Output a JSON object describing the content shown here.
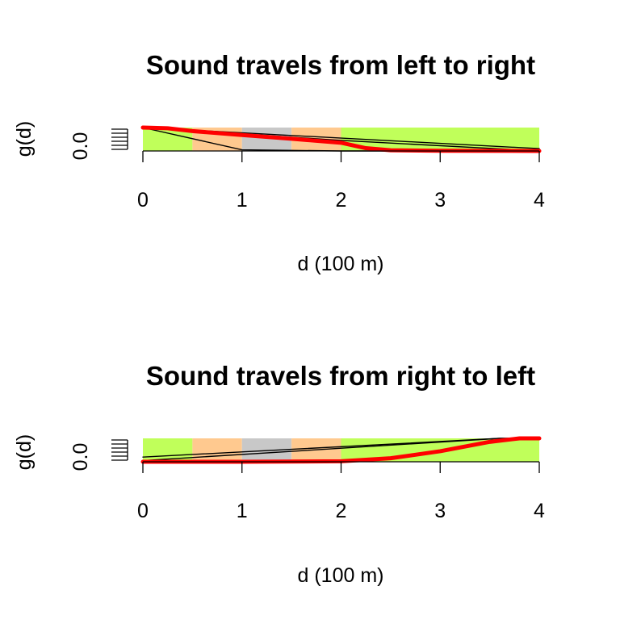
{
  "chart_data": [
    {
      "type": "line",
      "title": "Sound travels from left to right",
      "xlabel": "d (100 m)",
      "ylabel": "g(d)",
      "xlim": [
        0,
        4
      ],
      "ylim": [
        0,
        1
      ],
      "x_ticks": [
        "0",
        "1",
        "2",
        "3",
        "4"
      ],
      "y_ticks": [
        "0.0"
      ],
      "background_bands": [
        {
          "from": 0.0,
          "to": 0.5,
          "color": "#c0ff5a"
        },
        {
          "from": 0.5,
          "to": 1.0,
          "color": "#ffc98f"
        },
        {
          "from": 1.0,
          "to": 1.5,
          "color": "#c8c8c8"
        },
        {
          "from": 1.5,
          "to": 2.0,
          "color": "#ffc98f"
        },
        {
          "from": 2.0,
          "to": 4.0,
          "color": "#c0ff5a"
        }
      ],
      "series": [
        {
          "color": "#000000",
          "width": 1.4,
          "x": [
            0,
            4
          ],
          "y": [
            1.0,
            0.1
          ]
        },
        {
          "color": "#000000",
          "width": 1.4,
          "x": [
            0,
            2,
            4
          ],
          "y": [
            1.0,
            0.45,
            0.0
          ]
        },
        {
          "color": "#000000",
          "width": 1.4,
          "x": [
            0,
            1,
            2,
            4
          ],
          "y": [
            1.0,
            0.05,
            0.0,
            0.0
          ]
        },
        {
          "color": "#ff0000",
          "width": 5,
          "x": [
            0,
            0.25,
            0.5,
            1.0,
            1.5,
            2.0,
            2.25,
            2.5,
            3.0,
            4.0
          ],
          "y": [
            1.0,
            0.97,
            0.85,
            0.68,
            0.52,
            0.35,
            0.12,
            0.03,
            0.01,
            0.0
          ]
        }
      ]
    },
    {
      "type": "line",
      "title": "Sound travels from right to left",
      "xlabel": "d (100 m)",
      "ylabel": "g(d)",
      "xlim": [
        0,
        4
      ],
      "ylim": [
        0,
        1
      ],
      "x_ticks": [
        "0",
        "1",
        "2",
        "3",
        "4"
      ],
      "y_ticks": [
        "0.0"
      ],
      "background_bands": [
        {
          "from": 0.0,
          "to": 0.5,
          "color": "#c0ff5a"
        },
        {
          "from": 0.5,
          "to": 1.0,
          "color": "#ffc98f"
        },
        {
          "from": 1.0,
          "to": 1.5,
          "color": "#c8c8c8"
        },
        {
          "from": 1.5,
          "to": 2.0,
          "color": "#ffc98f"
        },
        {
          "from": 2.0,
          "to": 4.0,
          "color": "#c0ff5a"
        }
      ],
      "series": [
        {
          "color": "#000000",
          "width": 1.4,
          "x": [
            0,
            3.6,
            4
          ],
          "y": [
            0.2,
            1.0,
            1.0
          ]
        },
        {
          "color": "#000000",
          "width": 1.4,
          "x": [
            0,
            3.6,
            4
          ],
          "y": [
            0.05,
            1.0,
            1.0
          ]
        },
        {
          "color": "#ff0000",
          "width": 5,
          "x": [
            0,
            1.0,
            2.0,
            2.5,
            3.0,
            3.5,
            3.8,
            4.0
          ],
          "y": [
            0.0,
            0.0,
            0.02,
            0.15,
            0.45,
            0.85,
            1.0,
            1.0
          ]
        }
      ]
    }
  ]
}
